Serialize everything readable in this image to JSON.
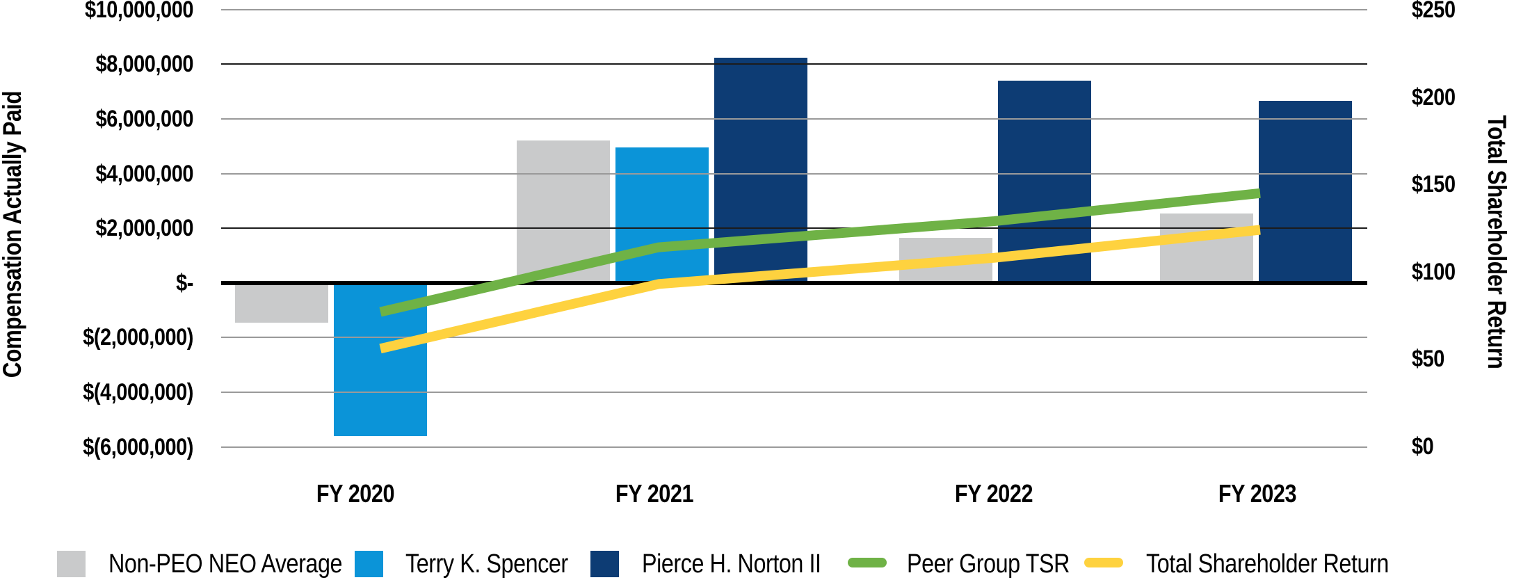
{
  "chart_data": {
    "type": "bar+line combo, dual axis",
    "categories": [
      "FY 2020",
      "FY 2021",
      "FY 2022",
      "FY 2023"
    ],
    "bar_series": [
      {
        "name": "Non-PEO NEO Average",
        "color": "#c9cacb",
        "values": [
          -1450000,
          5200000,
          1650000,
          2550000
        ]
      },
      {
        "name": "Terry K. Spencer",
        "color": "#0b94d8",
        "values": [
          -5600000,
          4950000,
          null,
          null
        ]
      },
      {
        "name": "Pierce H. Norton II",
        "color": "#0d3c74",
        "values": [
          null,
          8250000,
          7400000,
          6650000
        ]
      }
    ],
    "line_series": [
      {
        "name": "Peer Group TSR",
        "color": "#6fb246",
        "values": [
          77,
          114,
          129,
          145
        ]
      },
      {
        "name": "Total Shareholder Return",
        "color": "#fed23f",
        "values": [
          56,
          93,
          108,
          124
        ]
      }
    ],
    "left_axis": {
      "title": "Compensation Actually Paid",
      "min": -6000000,
      "max": 10000000,
      "ticks": [
        {
          "label": "$10,000,000",
          "value": 10000000
        },
        {
          "label": "$8,000,000",
          "value": 8000000
        },
        {
          "label": "$6,000,000",
          "value": 6000000
        },
        {
          "label": "$4,000,000",
          "value": 4000000
        },
        {
          "label": "$2,000,000",
          "value": 2000000
        },
        {
          "label": "$-",
          "value": 0
        },
        {
          "label": "$(2,000,000)",
          "value": -2000000
        },
        {
          "label": "$(4,000,000)",
          "value": -4000000
        },
        {
          "label": "$(6,000,000)",
          "value": -6000000
        }
      ]
    },
    "right_axis": {
      "title": "Total Shareholder Return",
      "min": 0,
      "max": 250,
      "ticks": [
        {
          "label": "$250",
          "value": 250
        },
        {
          "label": "$200",
          "value": 200
        },
        {
          "label": "$150",
          "value": 150
        },
        {
          "label": "$100",
          "value": 100
        },
        {
          "label": "$50",
          "value": 50
        },
        {
          "label": "$0",
          "value": 0
        }
      ]
    },
    "legend": [
      {
        "label": "Non-PEO NEO Average",
        "swatch": "square",
        "color": "#c9cacb"
      },
      {
        "label": "Terry K. Spencer",
        "swatch": "square",
        "color": "#0b94d8"
      },
      {
        "label": "Pierce H. Norton II",
        "swatch": "square",
        "color": "#0d3c74"
      },
      {
        "label": "Peer Group TSR",
        "swatch": "line",
        "color": "#6fb246"
      },
      {
        "label": "Total Shareholder Return",
        "swatch": "line",
        "color": "#fed23f"
      }
    ],
    "grid": "horizontal gridlines on, zero line emphasized black"
  }
}
